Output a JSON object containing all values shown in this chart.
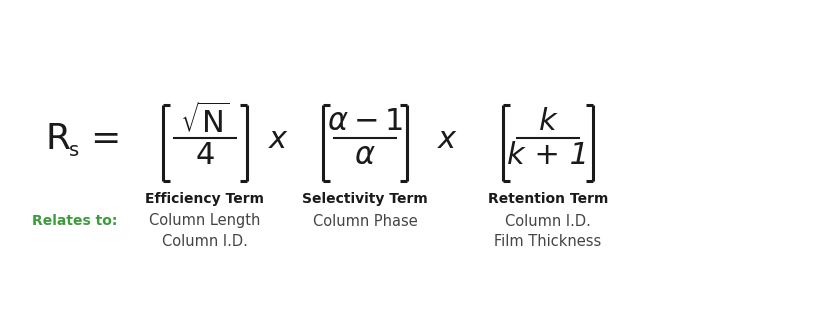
{
  "bg_color": "#ffffff",
  "green_color": "#3c9c3c",
  "formula_color": "#1a1a1a",
  "label_color": "#444444",
  "term1_label": "Efficiency Term",
  "term2_label": "Selectivity Term",
  "term3_label": "Retention Term",
  "term1_rel1": "Column Length",
  "term1_rel2": "Column I.D.",
  "term2_rel1": "Column Phase",
  "term3_rel1": "Column I.D.",
  "term3_rel2": "Film Thickness",
  "relates_to_label": "Relates to:"
}
